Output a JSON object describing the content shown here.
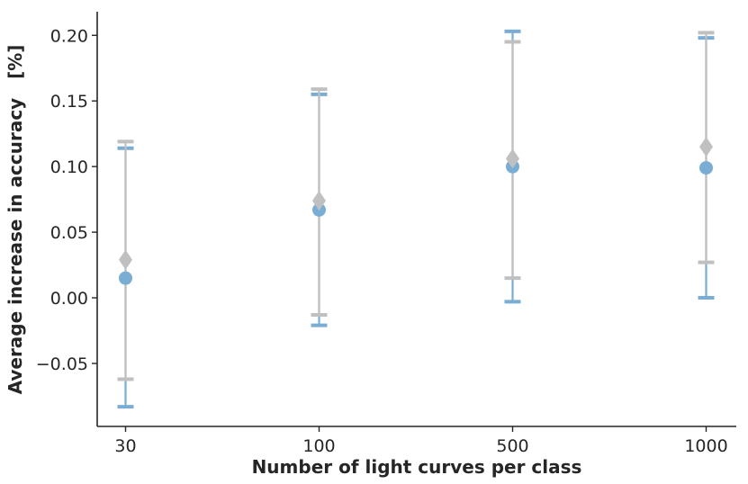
{
  "chart_data": {
    "type": "scatter",
    "title": "",
    "xlabel": "Number of light curves per class",
    "ylabel": "Average increase in accuracy   [%]",
    "categories": [
      "30",
      "100",
      "500",
      "1000"
    ],
    "ylim": [
      -0.098,
      0.218
    ],
    "yticks": [
      -0.05,
      0.0,
      0.05,
      0.1,
      0.15,
      0.2
    ],
    "ytick_labels": [
      "−0.05",
      "0.00",
      "0.05",
      "0.10",
      "0.15",
      "0.20"
    ],
    "grid": false,
    "series": [
      {
        "marker": "circle",
        "color": "#7aadd4",
        "values": [
          0.015,
          0.067,
          0.1,
          0.099
        ],
        "err_low": [
          -0.083,
          -0.021,
          -0.003,
          0.0
        ],
        "err_high": [
          0.114,
          0.155,
          0.203,
          0.198
        ]
      },
      {
        "marker": "diamond",
        "color": "#c0c0c0",
        "values": [
          0.029,
          0.074,
          0.106,
          0.115
        ],
        "err_low": [
          -0.062,
          -0.013,
          0.015,
          0.027
        ],
        "err_high": [
          0.119,
          0.159,
          0.195,
          0.202
        ]
      }
    ]
  }
}
